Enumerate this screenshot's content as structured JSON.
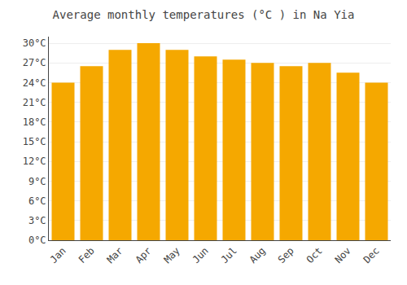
{
  "chart_data": {
    "type": "bar",
    "title": "Average monthly temperatures (°C ) in Na Yia",
    "categories": [
      "Jan",
      "Feb",
      "Mar",
      "Apr",
      "May",
      "Jun",
      "Jul",
      "Aug",
      "Sep",
      "Oct",
      "Nov",
      "Dec"
    ],
    "values": [
      24,
      26.5,
      29,
      30,
      29,
      28,
      27.5,
      27,
      26.5,
      27,
      25.5,
      24
    ],
    "color": "#F5A800",
    "ylim": [
      0,
      31
    ],
    "yticks": [
      {
        "value": 0,
        "label": "0°C"
      },
      {
        "value": 3,
        "label": "3°C"
      },
      {
        "value": 6,
        "label": "6°C"
      },
      {
        "value": 9,
        "label": "9°C"
      },
      {
        "value": 12,
        "label": "12°C"
      },
      {
        "value": 15,
        "label": "15°C"
      },
      {
        "value": 18,
        "label": "18°C"
      },
      {
        "value": 21,
        "label": "21°C"
      },
      {
        "value": 24,
        "label": "24°C"
      },
      {
        "value": 27,
        "label": "27°C"
      },
      {
        "value": 30,
        "label": "30°C"
      }
    ],
    "grid": true
  }
}
